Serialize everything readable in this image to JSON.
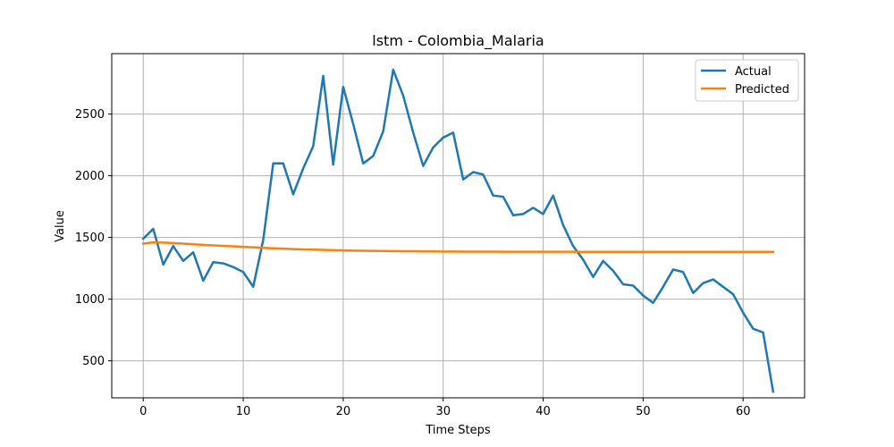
{
  "chart_data": {
    "type": "line",
    "title": "lstm - Colombia_Malaria",
    "xlabel": "Time Steps",
    "ylabel": "Value",
    "xlim": [
      -3.15,
      66.15
    ],
    "ylim": [
      200,
      2990
    ],
    "xticks": [
      0,
      10,
      20,
      30,
      40,
      50,
      60
    ],
    "yticks": [
      500,
      1000,
      1500,
      2000,
      2500
    ],
    "grid": true,
    "legend_position": "upper-right",
    "series": [
      {
        "name": "Actual",
        "color": "#1f77b4",
        "x": [
          0,
          1,
          2,
          3,
          4,
          5,
          6,
          7,
          8,
          9,
          10,
          11,
          12,
          13,
          14,
          15,
          16,
          17,
          18,
          19,
          20,
          21,
          22,
          23,
          24,
          25,
          26,
          27,
          28,
          29,
          30,
          31,
          32,
          33,
          34,
          35,
          36,
          37,
          38,
          39,
          40,
          41,
          42,
          43,
          44,
          45,
          46,
          47,
          48,
          49,
          50,
          51,
          52,
          53,
          54,
          55,
          56,
          57,
          58,
          59,
          60,
          61,
          62,
          63
        ],
        "values": [
          1490,
          1570,
          1280,
          1430,
          1310,
          1380,
          1150,
          1300,
          1290,
          1260,
          1220,
          1100,
          1480,
          2100,
          2100,
          1850,
          2060,
          2240,
          2810,
          2090,
          2720,
          2420,
          2100,
          2160,
          2360,
          2860,
          2650,
          2350,
          2080,
          2230,
          2310,
          2350,
          1970,
          2030,
          2010,
          1840,
          1830,
          1680,
          1690,
          1740,
          1690,
          1840,
          1600,
          1430,
          1320,
          1180,
          1310,
          1230,
          1120,
          1110,
          1030,
          970,
          1100,
          1240,
          1220,
          1050,
          1130,
          1160,
          1100,
          1040,
          890,
          760,
          730,
          250
        ]
      },
      {
        "name": "Predicted",
        "color": "#ff7f0e",
        "x": [
          0,
          1,
          2,
          3,
          4,
          5,
          6,
          7,
          8,
          9,
          10,
          11,
          12,
          13,
          14,
          15,
          16,
          17,
          18,
          19,
          20,
          21,
          22,
          23,
          24,
          25,
          26,
          27,
          28,
          29,
          30,
          31,
          32,
          33,
          34,
          35,
          36,
          37,
          38,
          39,
          40,
          41,
          42,
          43,
          44,
          45,
          46,
          47,
          48,
          49,
          50,
          51,
          52,
          53,
          54,
          55,
          56,
          57,
          58,
          59,
          60,
          61,
          62,
          63
        ],
        "values": [
          1450,
          1460,
          1458,
          1455,
          1450,
          1445,
          1440,
          1436,
          1432,
          1428,
          1424,
          1420,
          1416,
          1412,
          1409,
          1406,
          1403,
          1401,
          1399,
          1397,
          1395,
          1393,
          1392,
          1391,
          1390,
          1389,
          1388,
          1388,
          1387,
          1387,
          1386,
          1386,
          1385,
          1385,
          1385,
          1385,
          1384,
          1384,
          1384,
          1384,
          1384,
          1384,
          1384,
          1384,
          1383,
          1383,
          1383,
          1383,
          1383,
          1383,
          1383,
          1383,
          1383,
          1383,
          1383,
          1383,
          1383,
          1383,
          1383,
          1383,
          1383,
          1383,
          1383,
          1383
        ]
      }
    ]
  }
}
